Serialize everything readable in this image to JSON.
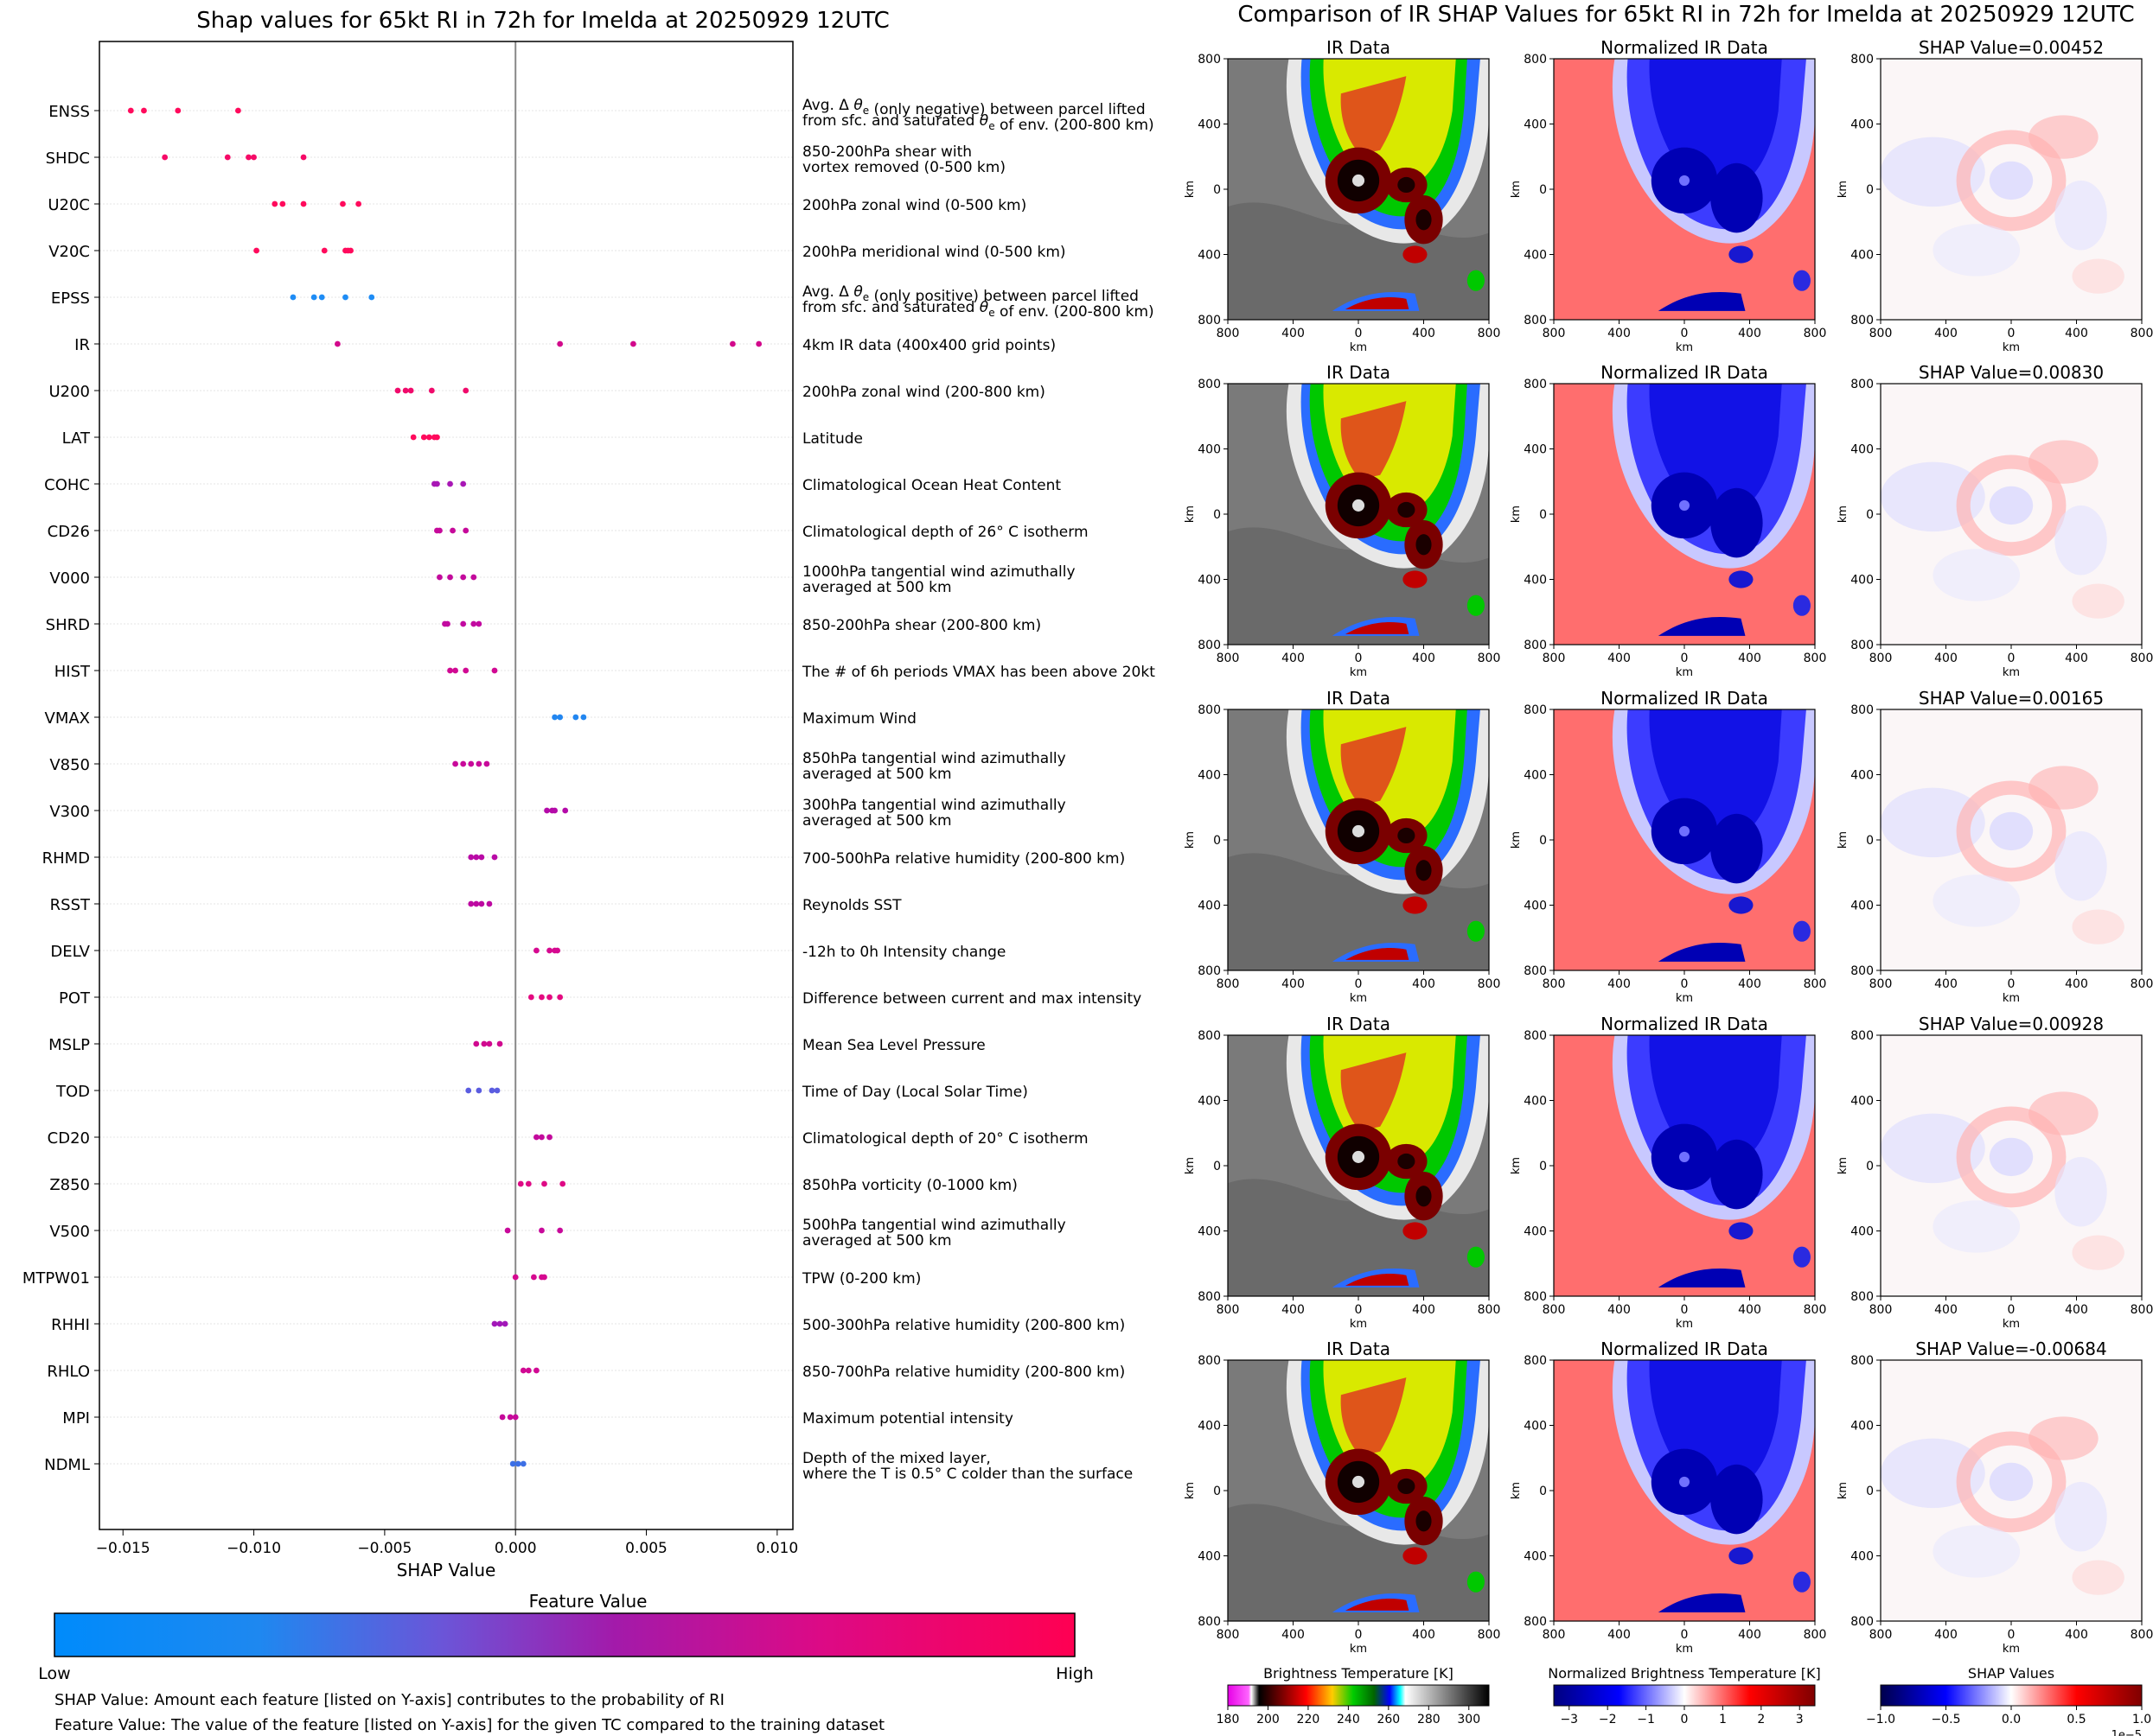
{
  "left_chart": {
    "title": "Shap values for 65kt RI in 72h for Imelda at 20250929 12UTC",
    "xlabel": "SHAP Value",
    "colorbar_title": "Feature Value",
    "colorbar_low": "Low",
    "colorbar_high": "High",
    "note1": "SHAP Value: Amount each feature [listed on Y-axis] contributes to the probability of RI",
    "note2": "Feature Value: The value of the feature [listed on Y-axis] for the given TC compared to the training dataset"
  },
  "right_panel": {
    "title": "Comparison of IR SHAP Values for 65kt RI in 72h for Imelda at 20250929 12UTC",
    "col_titles": [
      "IR Data",
      "Normalized IR Data"
    ],
    "shap_titles": [
      "SHAP Value=0.00452",
      "SHAP Value=0.00830",
      "SHAP Value=0.00165",
      "SHAP Value=0.00928",
      "SHAP Value=-0.00684"
    ],
    "axis_unit": "km",
    "tick_labels": [
      "800",
      "400",
      "0",
      "400",
      "800"
    ],
    "colorbars": [
      {
        "title": "Brightness Temperature [K]",
        "ticks": [
          "180",
          "200",
          "220",
          "240",
          "260",
          "280",
          "300"
        ]
      },
      {
        "title": "Normalized Brightness Temperature [K]",
        "ticks": [
          "−3",
          "−2",
          "−1",
          "0",
          "1",
          "2",
          "3"
        ]
      },
      {
        "title": "SHAP Values",
        "ticks": [
          "−1.0",
          "−0.5",
          "0.0",
          "0.5",
          "1.0"
        ],
        "offset": "1e−5"
      }
    ]
  },
  "chart_data": {
    "type": "scatter",
    "title": "Shap values for 65kt RI in 72h for Imelda at 20250929 12UTC",
    "xlabel": "SHAP Value",
    "xlim": [
      -0.0159,
      0.0106
    ],
    "xticks": [
      -0.015,
      -0.01,
      -0.005,
      0.0,
      0.005,
      0.01
    ],
    "xtick_labels": [
      "−0.015",
      "−0.010",
      "−0.005",
      "0.000",
      "0.005",
      "0.010"
    ],
    "features": [
      {
        "name": "ENSS",
        "desc": [
          "Avg. Δ θe (only negative) between parcel lifted",
          "from sfc. and saturated θe of env. (200-800 km)"
        ],
        "values": [
          -0.0147,
          -0.0142,
          -0.0129,
          -0.0106
        ],
        "color": "#ff0a5c"
      },
      {
        "name": "SHDC",
        "desc": [
          "850-200hPa shear with",
          "vortex removed (0-500 km)"
        ],
        "values": [
          -0.0134,
          -0.011,
          -0.0102,
          -0.01,
          -0.0081
        ],
        "color": "#f60a67"
      },
      {
        "name": "U20C",
        "desc": [
          "200hPa zonal wind (0-500 km)"
        ],
        "values": [
          -0.0092,
          -0.0089,
          -0.0081,
          -0.0066,
          -0.006
        ],
        "color": "#ff0a5c"
      },
      {
        "name": "V20C",
        "desc": [
          "200hPa meridional wind (0-500 km)"
        ],
        "values": [
          -0.0099,
          -0.0073,
          -0.0065,
          -0.0064,
          -0.0063
        ],
        "color": "#ff0a5c"
      },
      {
        "name": "EPSS",
        "desc": [
          "Avg. Δ θe (only positive) between parcel lifted",
          "from sfc. and saturated θe of env. (200-800 km)"
        ],
        "values": [
          -0.0085,
          -0.0077,
          -0.0074,
          -0.0065,
          -0.0055
        ],
        "color": "#1e8cf5"
      },
      {
        "name": "IR",
        "desc": [
          "4km IR data (400x400 grid points)"
        ],
        "values": [
          -0.0068,
          0.0017,
          0.0045,
          0.0083,
          0.0093
        ],
        "color": "#d2098b"
      },
      {
        "name": "U200",
        "desc": [
          "200hPa zonal wind (200-800 km)"
        ],
        "values": [
          -0.0045,
          -0.0042,
          -0.004,
          -0.0032,
          -0.0019
        ],
        "color": "#f00a6b"
      },
      {
        "name": "LAT",
        "desc": [
          "Latitude"
        ],
        "values": [
          -0.0039,
          -0.0035,
          -0.0033,
          -0.0031,
          -0.003
        ],
        "color": "#ff0a5c"
      },
      {
        "name": "COHC",
        "desc": [
          "Climatological Ocean Heat Content"
        ],
        "values": [
          -0.0031,
          -0.003,
          -0.0025,
          -0.002
        ],
        "color": "#a817b5"
      },
      {
        "name": "CD26",
        "desc": [
          "Climatological depth of 26° C isotherm"
        ],
        "values": [
          -0.003,
          -0.0029,
          -0.0024,
          -0.0019
        ],
        "color": "#c6099a"
      },
      {
        "name": "V000",
        "desc": [
          "1000hPa tangential wind azimuthally",
          "averaged at 500 km"
        ],
        "values": [
          -0.0029,
          -0.0025,
          -0.002,
          -0.0016
        ],
        "color": "#c30a9c"
      },
      {
        "name": "SHRD",
        "desc": [
          "850-200hPa shear (200-800 km)"
        ],
        "values": [
          -0.0027,
          -0.0026,
          -0.002,
          -0.0016,
          -0.0014
        ],
        "color": "#c20aa0"
      },
      {
        "name": "HIST",
        "desc": [
          "The # of 6h periods VMAX has been above 20kt"
        ],
        "values": [
          -0.0025,
          -0.0023,
          -0.0019,
          -0.0008
        ],
        "color": "#d10993"
      },
      {
        "name": "VMAX",
        "desc": [
          "Maximum Wind"
        ],
        "values": [
          0.0015,
          0.0017,
          0.0023,
          0.0026
        ],
        "color": "#2286f0"
      },
      {
        "name": "V850",
        "desc": [
          "850hPa tangential wind azimuthally",
          "averaged at 500 km"
        ],
        "values": [
          -0.0023,
          -0.002,
          -0.0017,
          -0.0014,
          -0.0011
        ],
        "color": "#c8099a"
      },
      {
        "name": "V300",
        "desc": [
          "300hPa tangential wind azimuthally",
          "averaged at 500 km"
        ],
        "values": [
          0.0012,
          0.0014,
          0.0015,
          0.0019
        ],
        "color": "#b40aa8"
      },
      {
        "name": "RHMD",
        "desc": [
          "700-500hPa relative humidity (200-800 km)"
        ],
        "values": [
          -0.0017,
          -0.0015,
          -0.0013,
          -0.0008
        ],
        "color": "#b90aa6"
      },
      {
        "name": "RSST",
        "desc": [
          "Reynolds SST"
        ],
        "values": [
          -0.0017,
          -0.0015,
          -0.0013,
          -0.001
        ],
        "color": "#bd09a1"
      },
      {
        "name": "DELV",
        "desc": [
          "-12h to 0h Intensity change"
        ],
        "values": [
          0.0008,
          0.0013,
          0.0015,
          0.0016
        ],
        "color": "#d60990"
      },
      {
        "name": "POT",
        "desc": [
          "Difference between current and max intensity"
        ],
        "values": [
          0.0006,
          0.001,
          0.0013,
          0.0017
        ],
        "color": "#e40a80"
      },
      {
        "name": "MSLP",
        "desc": [
          "Mean Sea Level Pressure"
        ],
        "values": [
          -0.0015,
          -0.0012,
          -0.001,
          -0.0006
        ],
        "color": "#d0098f"
      },
      {
        "name": "TOD",
        "desc": [
          "Time of Day (Local Solar Time)"
        ],
        "values": [
          -0.0018,
          -0.0014,
          -0.0009,
          -0.0007
        ],
        "color": "#5a5ce0"
      },
      {
        "name": "CD20",
        "desc": [
          "Climatological depth of 20° C isotherm"
        ],
        "values": [
          0.0008,
          0.001,
          0.0013
        ],
        "color": "#c30a9c"
      },
      {
        "name": "Z850",
        "desc": [
          "850hPa vorticity (0-1000 km)"
        ],
        "values": [
          0.0002,
          0.0005,
          0.0011,
          0.0018
        ],
        "color": "#de0a85"
      },
      {
        "name": "V500",
        "desc": [
          "500hPa tangential wind azimuthally",
          "averaged at 500 km"
        ],
        "values": [
          -0.0003,
          0.001,
          0.0017
        ],
        "color": "#c8099a"
      },
      {
        "name": "MTPW01",
        "desc": [
          "TPW (0-200 km)"
        ],
        "values": [
          0.0,
          0.0007,
          0.001,
          0.0011
        ],
        "color": "#d60990"
      },
      {
        "name": "RHHI",
        "desc": [
          "500-300hPa relative humidity (200-800 km)"
        ],
        "values": [
          -0.0008,
          -0.0006,
          -0.0004
        ],
        "color": "#a217b8"
      },
      {
        "name": "RHLO",
        "desc": [
          "850-700hPa relative humidity (200-800 km)"
        ],
        "values": [
          0.0003,
          0.0005,
          0.0008
        ],
        "color": "#d10993"
      },
      {
        "name": "MPI",
        "desc": [
          "Maximum potential intensity"
        ],
        "values": [
          -0.0005,
          -0.0002,
          0.0
        ],
        "color": "#c6099a"
      },
      {
        "name": "NDML",
        "desc": [
          "Depth of the mixed layer,",
          "where the T is 0.5° C colder than the surface"
        ],
        "values": [
          -0.0001,
          0.0001,
          0.0003
        ],
        "color": "#3c6fe5"
      }
    ]
  }
}
